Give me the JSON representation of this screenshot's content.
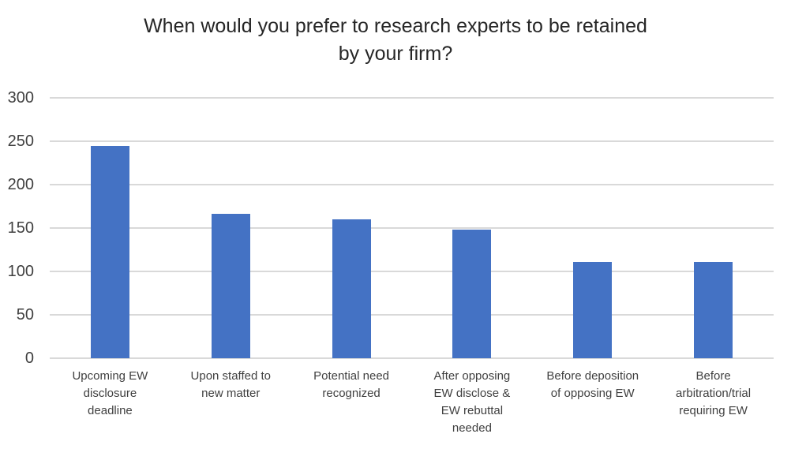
{
  "chart_data": {
    "type": "bar",
    "title": "When would you prefer to research experts to be retained by your firm?",
    "title_lines": [
      "When would you prefer to research experts to be retained",
      "by your firm?"
    ],
    "categories": [
      "Upcoming EW disclosure deadline",
      "Upon staffed to new matter",
      "Potential need recognized",
      "After opposing EW disclose & EW rebuttal needed",
      "Before deposition of opposing EW",
      "Before arbitration/trial requiring EW"
    ],
    "categories_wrapped": [
      [
        "Upcoming EW",
        "disclosure",
        "deadline"
      ],
      [
        "Upon staffed to",
        "new matter"
      ],
      [
        "Potential need",
        "recognized"
      ],
      [
        "After opposing",
        "EW disclose &",
        "EW rebuttal",
        "needed"
      ],
      [
        "Before deposition",
        "of opposing EW"
      ],
      [
        "Before",
        "arbitration/trial",
        "requiring EW"
      ]
    ],
    "values": [
      245,
      166,
      160,
      148,
      111,
      111
    ],
    "xlabel": "",
    "ylabel": "",
    "ylim": [
      0,
      300
    ],
    "yticks": [
      0,
      50,
      100,
      150,
      200,
      250,
      300
    ],
    "grid": true,
    "legend": false,
    "bar_color": "#4472C4",
    "gridline_color": "#D9D9D9",
    "axis_line_color": "#D9D9D9",
    "title_color": "#262626",
    "tick_label_color": "#404040",
    "background_color": "#FFFFFF"
  }
}
